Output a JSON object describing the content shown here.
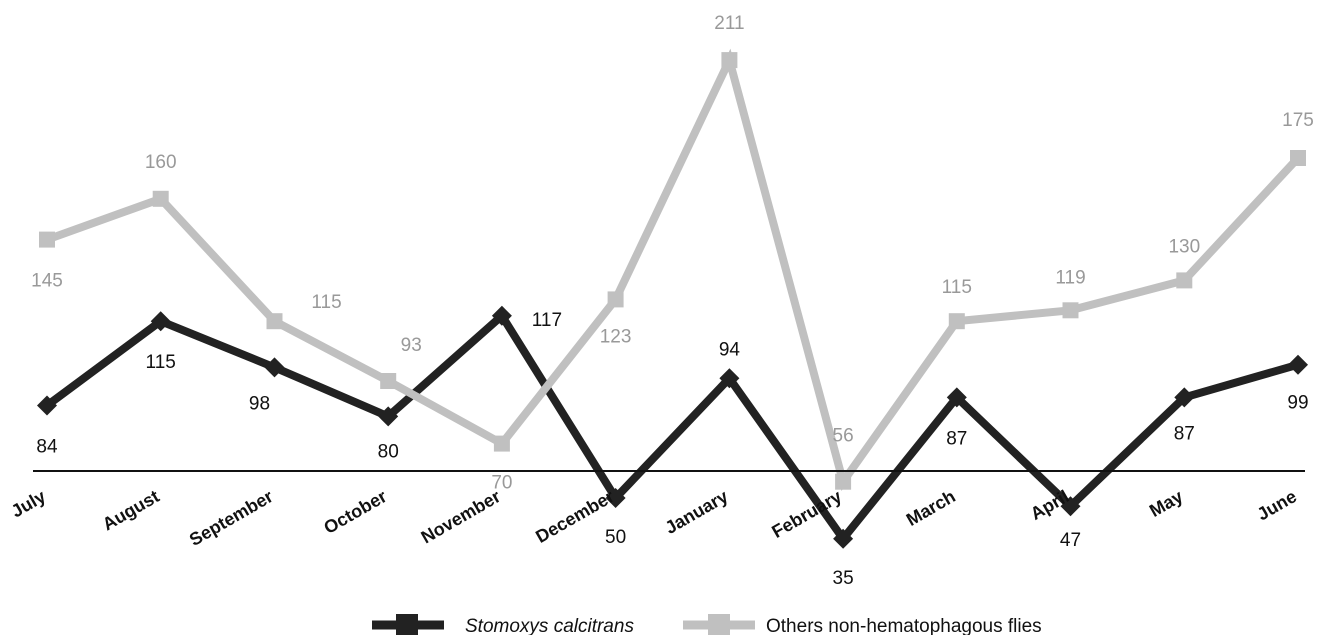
{
  "chart_data": {
    "type": "line",
    "title": "",
    "xlabel": "",
    "ylabel": "",
    "categories": [
      "July",
      "August",
      "September",
      "October",
      "November",
      "December",
      "January",
      "February",
      "March",
      "April",
      "May",
      "June"
    ],
    "series": [
      {
        "name": "Stomoxys calcitrans",
        "values": [
          84,
          115,
          98,
          80,
          117,
          50,
          94,
          35,
          87,
          47,
          87,
          99
        ],
        "color": "#222222",
        "marker": "diamond",
        "label_color": "#111111"
      },
      {
        "name": "Others non-hematophagous flies",
        "values": [
          145,
          160,
          115,
          93,
          70,
          123,
          211,
          56,
          115,
          119,
          130,
          175
        ],
        "color": "#c0c0c0",
        "marker": "square",
        "label_color": "#999999"
      }
    ],
    "ylim": [
      0,
      220
    ],
    "grid": false,
    "legend": {
      "position": "bottom-center"
    }
  }
}
